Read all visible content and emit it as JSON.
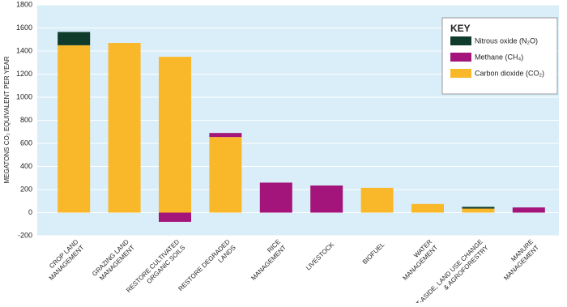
{
  "chart_data": {
    "type": "stacked_bar",
    "y_label": "MEGATONS CO₂ EQUIVALENT PER YEAR",
    "legend_title": "KEY",
    "categories": [
      [
        "CROP LAND",
        "MANAGEMENT"
      ],
      [
        "GRAZING LAND",
        "MANAGEMENT"
      ],
      [
        "RESTORE CULTIVATED",
        "ORGANIC SOILS"
      ],
      [
        "RESTORE DEGRADED",
        "LANDS"
      ],
      [
        "RICE",
        "MANAGEMENT"
      ],
      [
        "LIVESTOCK"
      ],
      [
        "BIOFUEL"
      ],
      [
        "WATER",
        "MANAGEMENT"
      ],
      [
        "SET-ASIDE, LAND USE CHANGE",
        "& AGROFORESTRY"
      ],
      [
        "MANURE",
        "MANAGEMENT"
      ]
    ],
    "series": [
      {
        "name": "Carbon dioxide (CO₂)",
        "color": "#f9b82a",
        "values": [
          1450,
          1470,
          1350,
          655,
          0,
          0,
          215,
          75,
          35,
          0
        ]
      },
      {
        "name": "Methane (CH₄)",
        "color": "#a3157a",
        "values": [
          0,
          0,
          -80,
          35,
          260,
          235,
          0,
          0,
          0,
          45
        ]
      },
      {
        "name": "Nitrous oxide (N₂O)",
        "color": "#0f3b2a",
        "values": [
          115,
          0,
          0,
          0,
          0,
          0,
          0,
          0,
          15,
          0
        ]
      }
    ],
    "ylim": [
      -200,
      1800
    ],
    "yticks": [
      -200,
      0,
      200,
      400,
      600,
      800,
      1000,
      1200,
      1400,
      1600,
      1800
    ],
    "grid": true
  }
}
